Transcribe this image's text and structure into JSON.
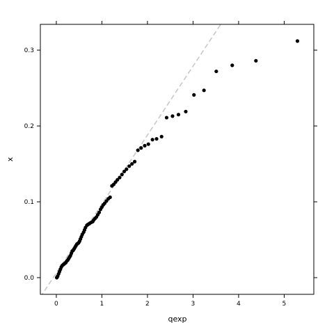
{
  "chart_data": {
    "type": "scatter",
    "title": "",
    "xlabel": "qexp",
    "ylabel": "x",
    "xlim": [
      -0.35,
      5.65
    ],
    "ylim": [
      -0.022,
      0.334
    ],
    "x_ticks": [
      0,
      1,
      2,
      3,
      4,
      5
    ],
    "x_tick_labels": [
      "0",
      "1",
      "2",
      "3",
      "4",
      "5"
    ],
    "y_ticks": [
      0.0,
      0.1,
      0.2,
      0.3
    ],
    "y_tick_labels": [
      "0.0",
      "0.1",
      "0.2",
      "0.3"
    ],
    "grid": false,
    "reference_line": {
      "style": "dashed",
      "color": "#c8c8c8",
      "intercept": 0.0062,
      "slope": 0.0909
    },
    "point_color": "#000000",
    "points": [
      [
        0.01,
        0.0
      ],
      [
        0.02,
        0.001
      ],
      [
        0.03,
        0.002
      ],
      [
        0.05,
        0.005
      ],
      [
        0.07,
        0.008
      ],
      [
        0.09,
        0.011
      ],
      [
        0.11,
        0.014
      ],
      [
        0.13,
        0.016
      ],
      [
        0.15,
        0.017
      ],
      [
        0.17,
        0.018
      ],
      [
        0.19,
        0.019
      ],
      [
        0.21,
        0.02
      ],
      [
        0.23,
        0.022
      ],
      [
        0.25,
        0.023
      ],
      [
        0.27,
        0.025
      ],
      [
        0.29,
        0.027
      ],
      [
        0.31,
        0.029
      ],
      [
        0.33,
        0.032
      ],
      [
        0.35,
        0.035
      ],
      [
        0.37,
        0.036
      ],
      [
        0.39,
        0.038
      ],
      [
        0.41,
        0.04
      ],
      [
        0.43,
        0.042
      ],
      [
        0.45,
        0.044
      ],
      [
        0.47,
        0.045
      ],
      [
        0.49,
        0.046
      ],
      [
        0.51,
        0.048
      ],
      [
        0.53,
        0.051
      ],
      [
        0.55,
        0.054
      ],
      [
        0.57,
        0.057
      ],
      [
        0.6,
        0.06
      ],
      [
        0.62,
        0.063
      ],
      [
        0.64,
        0.066
      ],
      [
        0.67,
        0.069
      ],
      [
        0.69,
        0.07
      ],
      [
        0.72,
        0.071
      ],
      [
        0.74,
        0.072
      ],
      [
        0.77,
        0.073
      ],
      [
        0.8,
        0.074
      ],
      [
        0.82,
        0.076
      ],
      [
        0.85,
        0.078
      ],
      [
        0.88,
        0.08
      ],
      [
        0.91,
        0.083
      ],
      [
        0.94,
        0.086
      ],
      [
        0.97,
        0.09
      ],
      [
        1.0,
        0.093
      ],
      [
        1.03,
        0.096
      ],
      [
        1.06,
        0.098
      ],
      [
        1.1,
        0.101
      ],
      [
        1.14,
        0.104
      ],
      [
        1.18,
        0.106
      ],
      [
        1.22,
        0.121
      ],
      [
        1.26,
        0.123
      ],
      [
        1.3,
        0.126
      ],
      [
        1.34,
        0.129
      ],
      [
        1.39,
        0.132
      ],
      [
        1.44,
        0.136
      ],
      [
        1.49,
        0.14
      ],
      [
        1.54,
        0.143
      ],
      [
        1.6,
        0.147
      ],
      [
        1.66,
        0.15
      ],
      [
        1.72,
        0.153
      ],
      [
        1.79,
        0.168
      ],
      [
        1.86,
        0.171
      ],
      [
        1.94,
        0.174
      ],
      [
        2.02,
        0.176
      ],
      [
        2.11,
        0.182
      ],
      [
        2.2,
        0.183
      ],
      [
        2.31,
        0.186
      ],
      [
        2.42,
        0.211
      ],
      [
        2.55,
        0.213
      ],
      [
        2.68,
        0.215
      ],
      [
        2.84,
        0.219
      ],
      [
        3.02,
        0.241
      ],
      [
        3.24,
        0.247
      ],
      [
        3.51,
        0.272
      ],
      [
        3.86,
        0.28
      ],
      [
        4.38,
        0.286
      ],
      [
        5.29,
        0.312
      ]
    ]
  }
}
